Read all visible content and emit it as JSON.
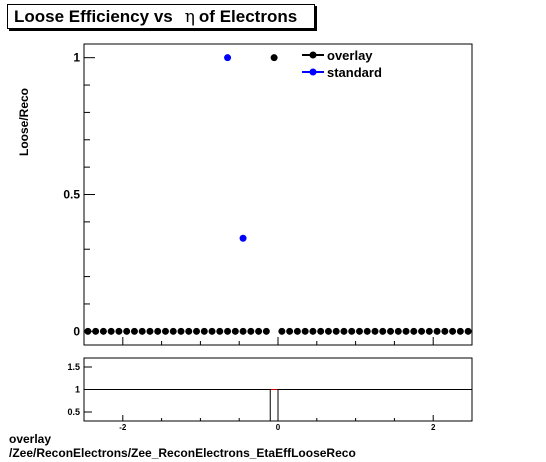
{
  "title": {
    "prefix": "Loose Efficiency vs",
    "symbol": "η",
    "suffix": "of Electrons"
  },
  "footer": {
    "line1": "overlay",
    "line2": "/Zee/ReconElectrons/Zee_ReconElectrons_EtaEffLooseReco"
  },
  "colors": {
    "overlay": "#000000",
    "standard": "#0000ff",
    "ratio_line": "#cc0000"
  },
  "chart_data": [
    {
      "type": "scatter",
      "ylabel": "Loose/Reco",
      "xlim": [
        -2.5,
        2.5
      ],
      "ylim": [
        -0.05,
        1.05
      ],
      "yticks": [
        {
          "v": 0,
          "label": "0"
        },
        {
          "v": 0.5,
          "label": "0.5"
        },
        {
          "v": 1,
          "label": "1"
        }
      ],
      "legend": {
        "position": "top-right"
      },
      "series": [
        {
          "name": "overlay",
          "points": [
            [
              -2.45,
              0
            ],
            [
              -2.35,
              0
            ],
            [
              -2.25,
              0
            ],
            [
              -2.15,
              0
            ],
            [
              -2.05,
              0
            ],
            [
              -1.95,
              0
            ],
            [
              -1.85,
              0
            ],
            [
              -1.75,
              0
            ],
            [
              -1.65,
              0
            ],
            [
              -1.55,
              0
            ],
            [
              -1.45,
              0
            ],
            [
              -1.35,
              0
            ],
            [
              -1.25,
              0
            ],
            [
              -1.15,
              0
            ],
            [
              -1.05,
              0
            ],
            [
              -0.95,
              0
            ],
            [
              -0.85,
              0
            ],
            [
              -0.75,
              0
            ],
            [
              -0.65,
              0
            ],
            [
              -0.55,
              0
            ],
            [
              -0.45,
              0
            ],
            [
              -0.35,
              0
            ],
            [
              -0.25,
              0
            ],
            [
              -0.15,
              0
            ],
            [
              -0.05,
              1
            ],
            [
              0.05,
              0
            ],
            [
              0.15,
              0
            ],
            [
              0.25,
              0
            ],
            [
              0.35,
              0
            ],
            [
              0.45,
              0
            ],
            [
              0.55,
              0
            ],
            [
              0.65,
              0
            ],
            [
              0.75,
              0
            ],
            [
              0.85,
              0
            ],
            [
              0.95,
              0
            ],
            [
              1.05,
              0
            ],
            [
              1.15,
              0
            ],
            [
              1.25,
              0
            ],
            [
              1.35,
              0
            ],
            [
              1.45,
              0
            ],
            [
              1.55,
              0
            ],
            [
              1.65,
              0
            ],
            [
              1.75,
              0
            ],
            [
              1.85,
              0
            ],
            [
              1.95,
              0
            ],
            [
              2.05,
              0
            ],
            [
              2.15,
              0
            ],
            [
              2.25,
              0
            ],
            [
              2.35,
              0
            ],
            [
              2.45,
              0
            ]
          ]
        },
        {
          "name": "standard",
          "points": [
            [
              -0.65,
              1
            ],
            [
              -0.45,
              0.34
            ]
          ]
        }
      ]
    },
    {
      "type": "line",
      "xlim": [
        -2.5,
        2.5
      ],
      "ylim": [
        0.3,
        1.7
      ],
      "xticks": [
        {
          "v": -2,
          "label": "-2"
        },
        {
          "v": 0,
          "label": "0"
        },
        {
          "v": 2,
          "label": "2"
        }
      ],
      "yticks": [
        {
          "v": 0.5,
          "label": "0.5"
        },
        {
          "v": 1,
          "label": "1"
        },
        {
          "v": 1.5,
          "label": "1.5"
        }
      ],
      "reference_line": 1,
      "ratio_steps": [
        {
          "x0": -2.5,
          "x1": -0.1,
          "y": 1
        },
        {
          "x0": -0.1,
          "x1": 0,
          "y": 0
        },
        {
          "x0": 0,
          "x1": 2.5,
          "y": 1
        }
      ]
    }
  ]
}
